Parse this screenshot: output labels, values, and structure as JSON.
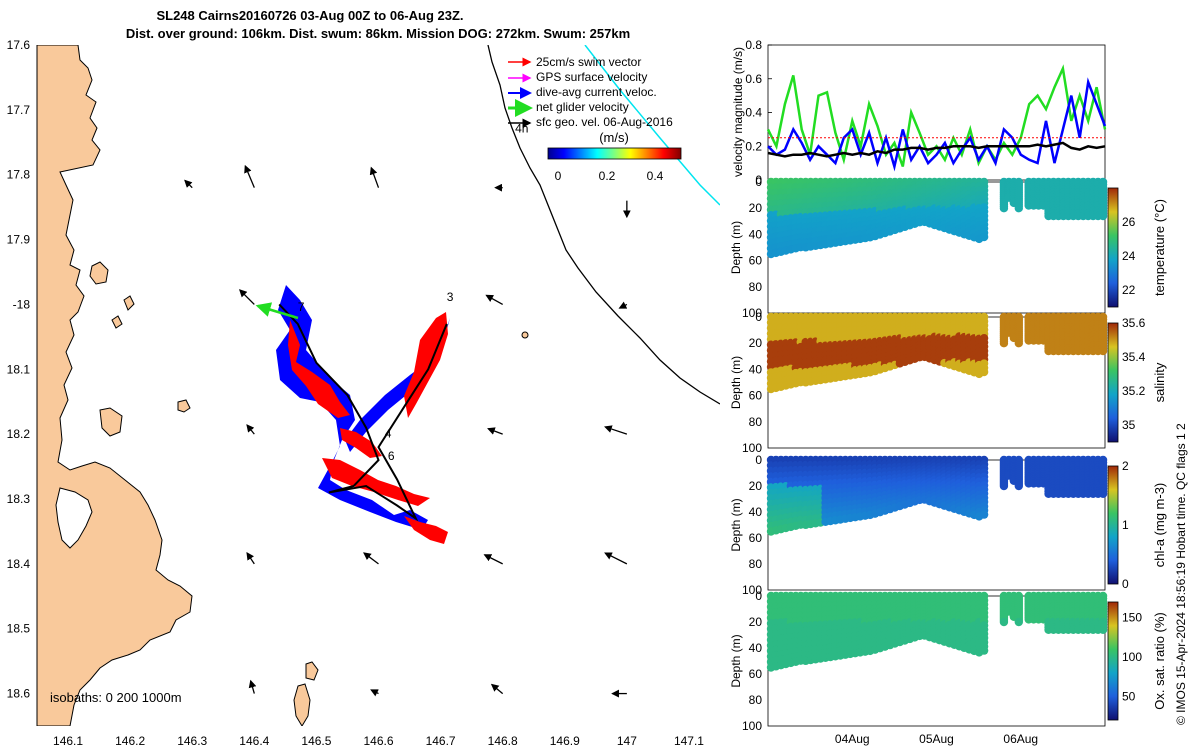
{
  "title_line1": "SL248 Cairns20160726 03-Aug 00Z to 06-Aug 23Z.",
  "title_line2": "Dist. over ground: 106km. Dist. swum: 86km. Mission DOG: 272km. Swum: 257km",
  "side_note": "© IMOS 15-Apr-2024 18:56:19 Hobart time. QC flags 1  2",
  "colors": {
    "land": "#f9c99b",
    "swim": "#ff0000",
    "gps": "#ff00ff",
    "current": "#0000ff",
    "net": "#22dd22",
    "geo": "#000000",
    "cyan_line": "#00e5f0"
  },
  "chart_data": [
    {
      "type": "map",
      "xlim": [
        146.05,
        147.15
      ],
      "ylim": [
        -18.65,
        -17.6
      ],
      "xticks": [
        146.1,
        146.2,
        146.3,
        146.4,
        146.5,
        146.6,
        146.7,
        146.8,
        146.9,
        147,
        147.1
      ],
      "xtick_labels": [
        "146.1",
        "146.2",
        "146.3",
        "146.4",
        "146.5",
        "146.6",
        "146.7",
        "146.8",
        "146.9",
        "147",
        "147.1"
      ],
      "yticks": [
        -17.6,
        -17.7,
        -17.8,
        -17.9,
        -18,
        -18.1,
        -18.2,
        -18.3,
        -18.4,
        -18.5,
        -18.6
      ],
      "ytick_labels": [
        "17.6",
        "17.7",
        "17.8",
        "17.9",
        "-18",
        "18.1",
        "18.2",
        "18.3",
        "18.4",
        "18.5",
        "18.6"
      ],
      "legend": {
        "entries": [
          "25cm/s swim vector",
          "GPS surface velocity",
          "dive-avg current veloc.",
          "net glider velocity",
          "sfc geo. vel. 06-Aug-2016"
        ],
        "units": "(m/s)",
        "colorbar_ticks": [
          "0",
          "0.2",
          "0.4"
        ]
      },
      "isobath_label": "isobaths: 0   200  1000m",
      "track_labels": [
        {
          "text": "3",
          "lon": 146.71,
          "lat": -17.995
        },
        {
          "text": "4",
          "lon": 146.61,
          "lat": -18.205
        },
        {
          "text": "6",
          "lon": 146.615,
          "lat": -18.24
        },
        {
          "text": "7",
          "lon": 146.47,
          "lat": -18.01
        },
        {
          "text": "4h",
          "lon": 146.82,
          "lat": -17.735
        }
      ],
      "glider_track": [
        [
          146.44,
          -18.0
        ],
        [
          146.47,
          -18.03
        ],
        [
          146.5,
          -18.09
        ],
        [
          146.55,
          -18.14
        ],
        [
          146.58,
          -18.19
        ],
        [
          146.6,
          -18.24
        ],
        [
          146.56,
          -18.28
        ],
        [
          146.52,
          -18.29
        ],
        [
          146.58,
          -18.28
        ],
        [
          146.63,
          -18.31
        ],
        [
          146.66,
          -18.33
        ],
        [
          146.63,
          -18.27
        ],
        [
          146.6,
          -18.22
        ],
        [
          146.64,
          -18.16
        ],
        [
          146.68,
          -18.1
        ],
        [
          146.71,
          -18.03
        ]
      ],
      "geo_vectors": [
        {
          "lon": 146.4,
          "lat": -17.82,
          "u": -0.05,
          "v": 0.12
        },
        {
          "lon": 146.6,
          "lat": -17.82,
          "u": -0.04,
          "v": 0.11
        },
        {
          "lon": 146.8,
          "lat": -17.82,
          "u": -0.04,
          "v": 0.0
        },
        {
          "lon": 147.0,
          "lat": -17.84,
          "u": 0.0,
          "v": -0.09
        },
        {
          "lon": 146.3,
          "lat": -17.82,
          "u": -0.04,
          "v": 0.04
        },
        {
          "lon": 146.4,
          "lat": -18.0,
          "u": -0.08,
          "v": 0.08
        },
        {
          "lon": 146.8,
          "lat": -18.0,
          "u": -0.09,
          "v": 0.05
        },
        {
          "lon": 147.0,
          "lat": -18.0,
          "u": -0.04,
          "v": -0.02
        },
        {
          "lon": 146.4,
          "lat": -18.2,
          "u": -0.04,
          "v": 0.05
        },
        {
          "lon": 146.8,
          "lat": -18.2,
          "u": -0.08,
          "v": 0.03
        },
        {
          "lon": 147.0,
          "lat": -18.2,
          "u": -0.12,
          "v": 0.04
        },
        {
          "lon": 146.4,
          "lat": -18.4,
          "u": -0.04,
          "v": 0.06
        },
        {
          "lon": 146.6,
          "lat": -18.4,
          "u": -0.08,
          "v": 0.06
        },
        {
          "lon": 146.8,
          "lat": -18.4,
          "u": -0.1,
          "v": 0.05
        },
        {
          "lon": 147.0,
          "lat": -18.4,
          "u": -0.12,
          "v": 0.06
        },
        {
          "lon": 146.4,
          "lat": -18.6,
          "u": -0.02,
          "v": 0.07
        },
        {
          "lon": 146.6,
          "lat": -18.6,
          "u": -0.04,
          "v": 0.02
        },
        {
          "lon": 146.8,
          "lat": -18.6,
          "u": -0.06,
          "v": 0.05
        },
        {
          "lon": 147.0,
          "lat": -18.6,
          "u": -0.08,
          "v": 0.0
        }
      ]
    },
    {
      "type": "line",
      "ylabel": "velocity magnitude (m/s)",
      "ylim": [
        0,
        0.8
      ],
      "yticks": [
        0,
        0.2,
        0.4,
        0.6,
        0.8
      ],
      "ytick_labels": [
        "0",
        "0.2",
        "0.4",
        "0.6",
        "0.8"
      ],
      "xlim": [
        0,
        4
      ],
      "x": [
        0,
        0.1,
        0.2,
        0.3,
        0.4,
        0.5,
        0.6,
        0.7,
        0.8,
        0.9,
        1.0,
        1.1,
        1.2,
        1.3,
        1.4,
        1.5,
        1.6,
        1.7,
        1.8,
        1.9,
        2.0,
        2.1,
        2.2,
        2.3,
        2.4,
        2.5,
        2.6,
        2.7,
        2.8,
        2.9,
        3.0,
        3.1,
        3.2,
        3.3,
        3.4,
        3.5,
        3.6,
        3.7,
        3.8,
        3.9,
        4.0
      ],
      "series": [
        {
          "name": "net glider velocity",
          "color": "#22dd22",
          "values": [
            0.3,
            0.2,
            0.45,
            0.62,
            0.3,
            0.15,
            0.5,
            0.52,
            0.28,
            0.12,
            0.35,
            0.2,
            0.45,
            0.32,
            0.15,
            0.22,
            0.08,
            0.4,
            0.28,
            0.15,
            0.2,
            0.12,
            0.25,
            0.15,
            0.3,
            0.1,
            0.2,
            0.12,
            0.22,
            0.15,
            0.25,
            0.45,
            0.5,
            0.42,
            0.55,
            0.66,
            0.35,
            0.5,
            0.35,
            0.55,
            0.3
          ]
        },
        {
          "name": "dive-avg current veloc.",
          "color": "#0000ff",
          "values": [
            0.2,
            0.15,
            0.18,
            0.3,
            0.22,
            0.12,
            0.2,
            0.15,
            0.1,
            0.25,
            0.3,
            0.15,
            0.28,
            0.1,
            0.25,
            0.08,
            0.3,
            0.12,
            0.2,
            0.1,
            0.15,
            0.22,
            0.1,
            0.18,
            0.25,
            0.12,
            0.2,
            0.1,
            0.3,
            0.25,
            0.15,
            0.12,
            0.1,
            0.35,
            0.1,
            0.3,
            0.5,
            0.25,
            0.58,
            0.45,
            0.32
          ]
        },
        {
          "name": "sfc geo. vel.",
          "color": "#000000",
          "values": [
            0.16,
            0.15,
            0.14,
            0.15,
            0.15,
            0.16,
            0.15,
            0.14,
            0.15,
            0.16,
            0.15,
            0.16,
            0.15,
            0.17,
            0.16,
            0.18,
            0.18,
            0.19,
            0.19,
            0.18,
            0.19,
            0.19,
            0.2,
            0.2,
            0.2,
            0.19,
            0.2,
            0.2,
            0.2,
            0.2,
            0.2,
            0.2,
            0.21,
            0.2,
            0.21,
            0.22,
            0.19,
            0.18,
            0.2,
            0.19,
            0.2
          ]
        },
        {
          "name": "25cm/s swim vector",
          "color": "#ff0000",
          "values": [
            0.25,
            0.25,
            0.25,
            0.25,
            0.25,
            0.25,
            0.25,
            0.25,
            0.25,
            0.25,
            0.25,
            0.25,
            0.25,
            0.25,
            0.25,
            0.25,
            0.25,
            0.25,
            0.25,
            0.25,
            0.25,
            0.25,
            0.25,
            0.25,
            0.25,
            0.25,
            0.25,
            0.25,
            0.25,
            0.25,
            0.25,
            0.25,
            0.25,
            0.25,
            0.25,
            0.25,
            0.25,
            0.25,
            0.25,
            0.25,
            0.25
          ]
        }
      ]
    },
    {
      "type": "heatmap",
      "variable": "temperature",
      "ylabel": "Depth (m)",
      "cbar_label": "temperature (°C)",
      "clim": [
        21,
        28
      ],
      "cbar_ticks": [
        22,
        24,
        26
      ],
      "cbar_tick_labels": [
        "22",
        "24",
        "26"
      ],
      "yticks": [
        0,
        20,
        40,
        60,
        80,
        100
      ],
      "ytick_labels": [
        "0",
        "20",
        "40",
        "60",
        "80",
        "100"
      ],
      "surface_value": 26,
      "deep_value": 24,
      "gradient_depth": 25
    },
    {
      "type": "heatmap",
      "variable": "salinity",
      "ylabel": "Depth (m)",
      "cbar_label": "salinity",
      "clim": [
        34.9,
        35.6
      ],
      "cbar_ticks": [
        35,
        35.2,
        35.4,
        35.6
      ],
      "cbar_tick_labels": [
        "35",
        "35.2",
        "35.4",
        "35.6"
      ],
      "yticks": [
        0,
        20,
        40,
        60,
        80,
        100
      ],
      "ytick_labels": [
        "0",
        "20",
        "40",
        "60",
        "80",
        "100"
      ],
      "surface_value": 35.5,
      "deep_value": 35.5,
      "core_value": 35.6,
      "core_depth": 30
    },
    {
      "type": "heatmap",
      "variable": "chl-a",
      "ylabel": "Depth (m)",
      "cbar_label": "chl-a (mg m-3)",
      "clim": [
        0,
        2
      ],
      "cbar_ticks": [
        0,
        1,
        2
      ],
      "cbar_tick_labels": [
        "0",
        "1",
        "2"
      ],
      "yticks": [
        0,
        20,
        40,
        60,
        80,
        100
      ],
      "ytick_labels": [
        "0",
        "20",
        "40",
        "60",
        "80",
        "100"
      ],
      "surface_value": 0.2,
      "deep_value": 0.8
    },
    {
      "type": "heatmap",
      "variable": "oxygen saturation",
      "ylabel": "Depth (m)",
      "cbar_label": "Ox. sat. ratio (%)",
      "clim": [
        20,
        170
      ],
      "cbar_ticks": [
        50,
        100,
        150
      ],
      "cbar_tick_labels": [
        "50",
        "100",
        "150"
      ],
      "yticks": [
        0,
        20,
        40,
        60,
        80,
        100
      ],
      "ytick_labels": [
        "0",
        "20",
        "40",
        "60",
        "80",
        "100"
      ],
      "xtick_labels": [
        "04Aug",
        "05Aug",
        "06Aug"
      ],
      "xtick_days": [
        1,
        2,
        3
      ],
      "surface_value": 105,
      "deep_value": 100
    }
  ]
}
